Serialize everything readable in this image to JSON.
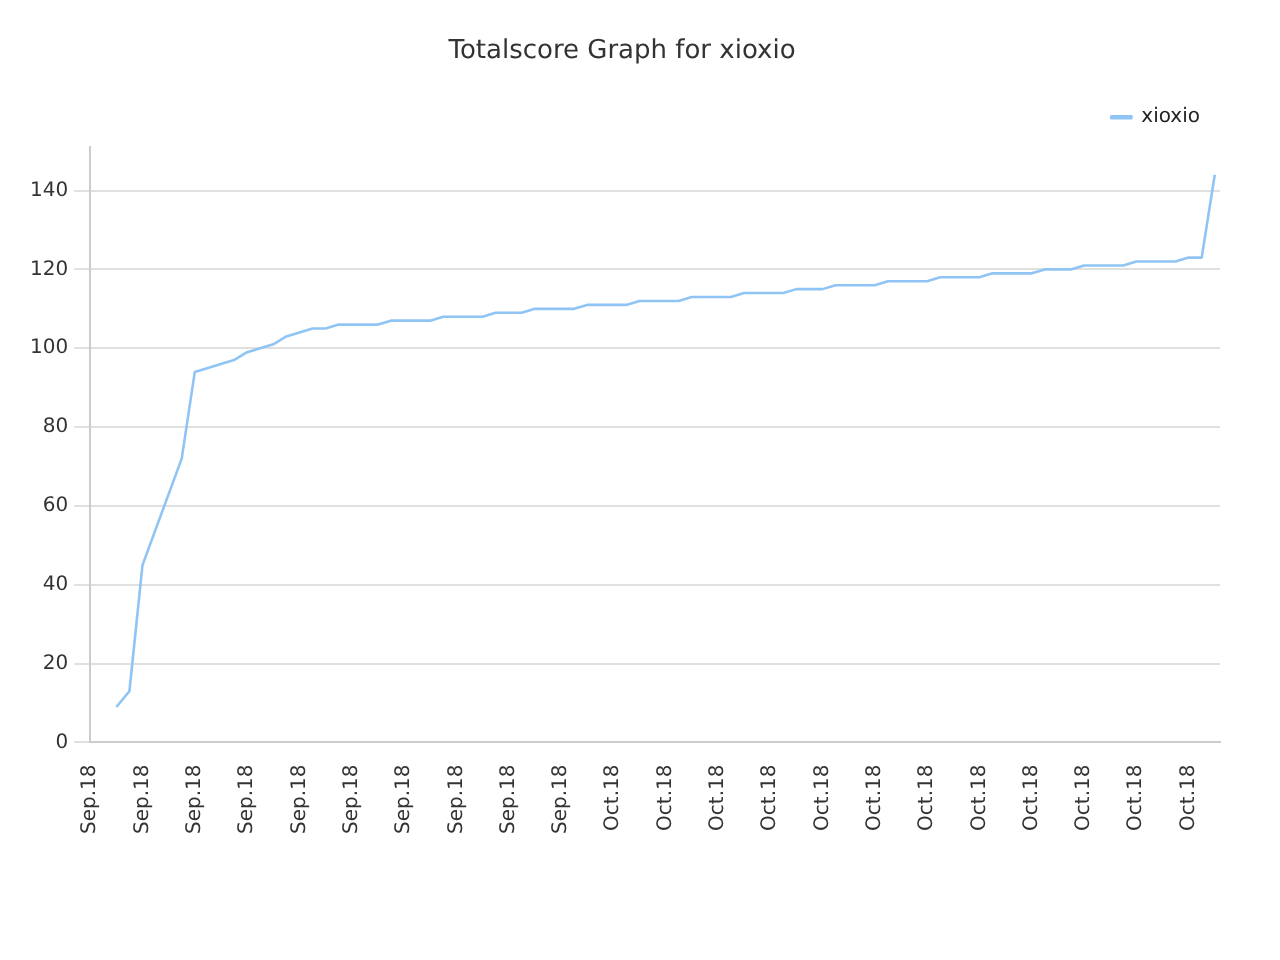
{
  "chart_data": {
    "type": "line",
    "title": "Totalscore Graph for xioxio",
    "categories": [
      "Sep.18",
      null,
      null,
      null,
      "Sep.18",
      null,
      null,
      null,
      "Sep.18",
      null,
      null,
      null,
      "Sep.18",
      null,
      null,
      null,
      "Sep.18",
      null,
      null,
      null,
      "Sep.18",
      null,
      null,
      null,
      "Sep.18",
      null,
      null,
      null,
      "Sep.18",
      null,
      null,
      null,
      "Sep.18",
      null,
      null,
      null,
      "Sep.18",
      null,
      null,
      null,
      "Oct.18",
      null,
      null,
      null,
      "Oct.18",
      null,
      null,
      null,
      "Oct.18",
      null,
      null,
      null,
      "Oct.18",
      null,
      null,
      null,
      "Oct.18",
      null,
      null,
      null,
      "Oct.18",
      null,
      null,
      null,
      "Oct.18",
      null,
      null,
      null,
      "Oct.18",
      null,
      null,
      null,
      "Oct.18",
      null,
      null,
      null,
      "Oct.18",
      null,
      null,
      null,
      "Oct.18",
      null,
      null,
      null,
      "Oct.18",
      null,
      null
    ],
    "series": [
      {
        "name": "xioxio",
        "color": "#90c4f5",
        "values": [
          null,
          null,
          9,
          13,
          45,
          54,
          63,
          72,
          94,
          95,
          96,
          97,
          99,
          100,
          101,
          103,
          104,
          105,
          105,
          106,
          106,
          106,
          106,
          107,
          107,
          107,
          107,
          108,
          108,
          108,
          108,
          109,
          109,
          109,
          110,
          110,
          110,
          110,
          111,
          111,
          111,
          111,
          112,
          112,
          112,
          112,
          113,
          113,
          113,
          113,
          114,
          114,
          114,
          114,
          115,
          115,
          115,
          116,
          116,
          116,
          116,
          117,
          117,
          117,
          117,
          118,
          118,
          118,
          118,
          119,
          119,
          119,
          119,
          120,
          120,
          120,
          121,
          121,
          121,
          121,
          122,
          122,
          122,
          122,
          123,
          123,
          144
        ]
      }
    ],
    "ylim": [
      0,
      151
    ],
    "yticks": [
      0,
      20,
      40,
      60,
      80,
      100,
      120,
      140
    ],
    "grid": "y",
    "legend": "top right",
    "marker": "none",
    "line_style": "solid"
  }
}
